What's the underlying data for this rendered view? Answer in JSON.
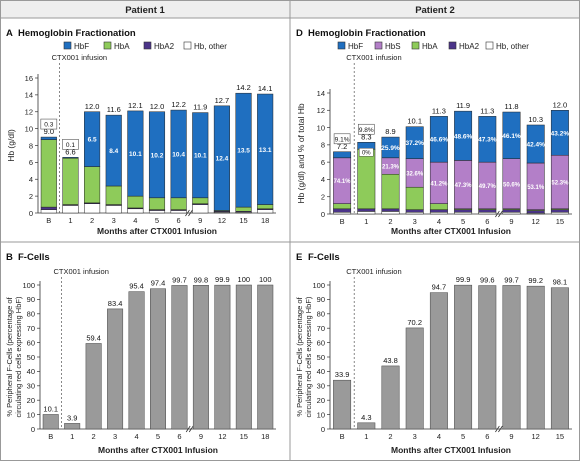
{
  "header": {
    "patient1": "Patient 1",
    "patient2": "Patient 2"
  },
  "colors": {
    "HbF": "#1f6fc0",
    "HbS": "#b37fc8",
    "HbA": "#8ecb5a",
    "HbA2": "#4b3489",
    "other": "#ffffff",
    "gray": "#9a9a9a",
    "header_bg": "#eeeeee",
    "frame": "#999999"
  },
  "chart_data": [
    {
      "id": "A",
      "type": "bar",
      "stacked": true,
      "panel_label": "A",
      "title": "Hemoglobin Fractionation",
      "ylabel": "Hb (g/dl)",
      "xlabel": "Months after CTX001 Infusion",
      "ylim": [
        0,
        16
      ],
      "yticks": [
        0,
        2,
        4,
        6,
        8,
        10,
        12,
        14,
        16
      ],
      "annotation": "CTX001 infusion",
      "legend": [
        {
          "key": "HbF",
          "label": "HbF"
        },
        {
          "key": "HbA",
          "label": "HbA"
        },
        {
          "key": "HbA2",
          "label": "HbA2"
        },
        {
          "key": "other",
          "label": "Hb, other"
        }
      ],
      "categories": [
        "B",
        "1",
        "2",
        "3",
        "4",
        "5",
        "6",
        "9",
        "12",
        "15",
        "18"
      ],
      "totals": [
        9.0,
        6.6,
        12.0,
        11.6,
        12.1,
        12.0,
        12.2,
        11.9,
        12.7,
        14.2,
        14.1
      ],
      "hbf_labels": [
        "0.3",
        "0.1",
        "6.5",
        "8.4",
        "10.1",
        "10.2",
        "10.4",
        "10.1",
        "12.4",
        "13.5",
        "13.1"
      ],
      "series": [
        {
          "key": "other",
          "name": "Hb, other",
          "values": [
            0.4,
            0.9,
            1.1,
            0.9,
            0.5,
            0.3,
            0.3,
            1.0,
            0.1,
            0.1,
            0.4
          ]
        },
        {
          "key": "HbA2",
          "name": "HbA2",
          "values": [
            0.3,
            0.1,
            0.1,
            0.1,
            0.1,
            0.1,
            0.1,
            0.1,
            0.1,
            0.1,
            0.1
          ]
        },
        {
          "key": "HbA",
          "name": "HbA",
          "values": [
            8.0,
            5.5,
            4.3,
            2.2,
            1.4,
            1.4,
            1.4,
            0.7,
            0.1,
            0.5,
            0.5
          ]
        },
        {
          "key": "HbF",
          "name": "HbF",
          "values": [
            0.3,
            0.1,
            6.5,
            8.4,
            10.1,
            10.2,
            10.4,
            10.1,
            12.4,
            13.5,
            13.1
          ]
        }
      ],
      "break_after": "6"
    },
    {
      "id": "B",
      "type": "bar",
      "panel_label": "B",
      "title": "F-Cells",
      "ylabel": "% Peripheral F-Cells (percentage of circulating red cells expressing HbF)",
      "ylabel_lines": [
        "% Peripheral F-Cells (percentage of",
        "circulating red cells expressing HbF)"
      ],
      "xlabel": "Months after CTX001 Infusion",
      "ylim": [
        0,
        100
      ],
      "yticks": [
        0,
        10,
        20,
        30,
        40,
        50,
        60,
        70,
        80,
        90,
        100
      ],
      "annotation": "CTX001 infusion",
      "categories": [
        "B",
        "1",
        "2",
        "3",
        "4",
        "5",
        "6",
        "9",
        "12",
        "15",
        "18"
      ],
      "values": [
        10.1,
        3.9,
        59.4,
        83.4,
        95.4,
        97.4,
        99.7,
        99.8,
        99.9,
        100,
        100
      ],
      "value_labels": [
        "10.1",
        "3.9",
        "59.4",
        "83.4",
        "95.4",
        "97.4",
        "99.7",
        "99.8",
        "99.9",
        "100",
        "100"
      ],
      "break_after": "6"
    },
    {
      "id": "D",
      "type": "bar",
      "stacked": true,
      "panel_label": "D",
      "title": "Hemoglobin Fractionation",
      "ylabel": "Hb (g/dl) and % of total Hb",
      "xlabel": "Months after CTX001 Infusion",
      "ylim": [
        0,
        14
      ],
      "yticks": [
        0,
        2,
        4,
        6,
        8,
        10,
        12,
        14
      ],
      "annotation": "CTX001 infusion",
      "legend": [
        {
          "key": "HbF",
          "label": "HbF"
        },
        {
          "key": "HbS",
          "label": "HbS"
        },
        {
          "key": "HbA",
          "label": "HbA"
        },
        {
          "key": "HbA2",
          "label": "HbA2"
        },
        {
          "key": "other",
          "label": "Hb, other"
        }
      ],
      "categories": [
        "B",
        "1",
        "2",
        "3",
        "4",
        "5",
        "6",
        "9",
        "12",
        "15"
      ],
      "totals": [
        7.2,
        8.3,
        8.9,
        10.1,
        11.3,
        11.9,
        11.3,
        11.8,
        10.3,
        12.0
      ],
      "hbf_labels": [
        "9.1%",
        "9.8%",
        "25.9%",
        "37.2%",
        "46.6%",
        "48.6%",
        "47.3%",
        "46.1%",
        "42.4%",
        "43.2%"
      ],
      "hbs_labels": [
        "74.1%",
        "0%",
        "21.3%",
        "32.6%",
        "41.2%",
        "47.3%",
        "49.7%",
        "50.6%",
        "53.1%",
        "52.3%"
      ],
      "series": [
        {
          "key": "other",
          "name": "Hb, other",
          "values": [
            0.2,
            0.3,
            0.3,
            0.2,
            0.2,
            0.2,
            0.2,
            0.2,
            0.1,
            0.2
          ]
        },
        {
          "key": "HbA2",
          "name": "HbA2",
          "values": [
            0.4,
            0.3,
            0.3,
            0.3,
            0.3,
            0.3,
            0.3,
            0.3,
            0.3,
            0.3
          ]
        },
        {
          "key": "HbA",
          "name": "HbA",
          "values": [
            0.6,
            6.9,
            4.0,
            2.6,
            0.7,
            0.1,
            0.1,
            0.1,
            0.1,
            0.1
          ]
        },
        {
          "key": "HbS",
          "name": "HbS",
          "values": [
            5.3,
            0.0,
            1.9,
            3.3,
            4.8,
            5.6,
            5.4,
            5.8,
            5.4,
            6.2
          ]
        },
        {
          "key": "HbF",
          "name": "HbF",
          "values": [
            0.7,
            0.8,
            2.4,
            3.7,
            5.3,
            5.7,
            5.3,
            5.4,
            4.4,
            5.2
          ]
        }
      ],
      "break_after": "6"
    },
    {
      "id": "E",
      "type": "bar",
      "panel_label": "E",
      "title": "F-Cells",
      "ylabel": "% Peripheral F-Cells (percentage of circulating red cells expressing HbF)",
      "ylabel_lines": [
        "% Peripheral F-Cells (percentage of",
        "circulating red cells expressing HbF)"
      ],
      "xlabel": "Months after CTX001 Infusion",
      "ylim": [
        0,
        100
      ],
      "yticks": [
        0,
        10,
        20,
        30,
        40,
        50,
        60,
        70,
        80,
        90,
        100
      ],
      "annotation": "CTX001 infusion",
      "categories": [
        "B",
        "1",
        "2",
        "3",
        "4",
        "5",
        "6",
        "9",
        "12",
        "15"
      ],
      "values": [
        33.9,
        4.3,
        43.8,
        70.2,
        94.7,
        99.9,
        99.6,
        99.7,
        99.2,
        98.1
      ],
      "value_labels": [
        "33.9",
        "4.3",
        "43.8",
        "70.2",
        "94.7",
        "99.9",
        "99.6",
        "99.7",
        "99.2",
        "98.1"
      ],
      "break_after": "6"
    }
  ]
}
